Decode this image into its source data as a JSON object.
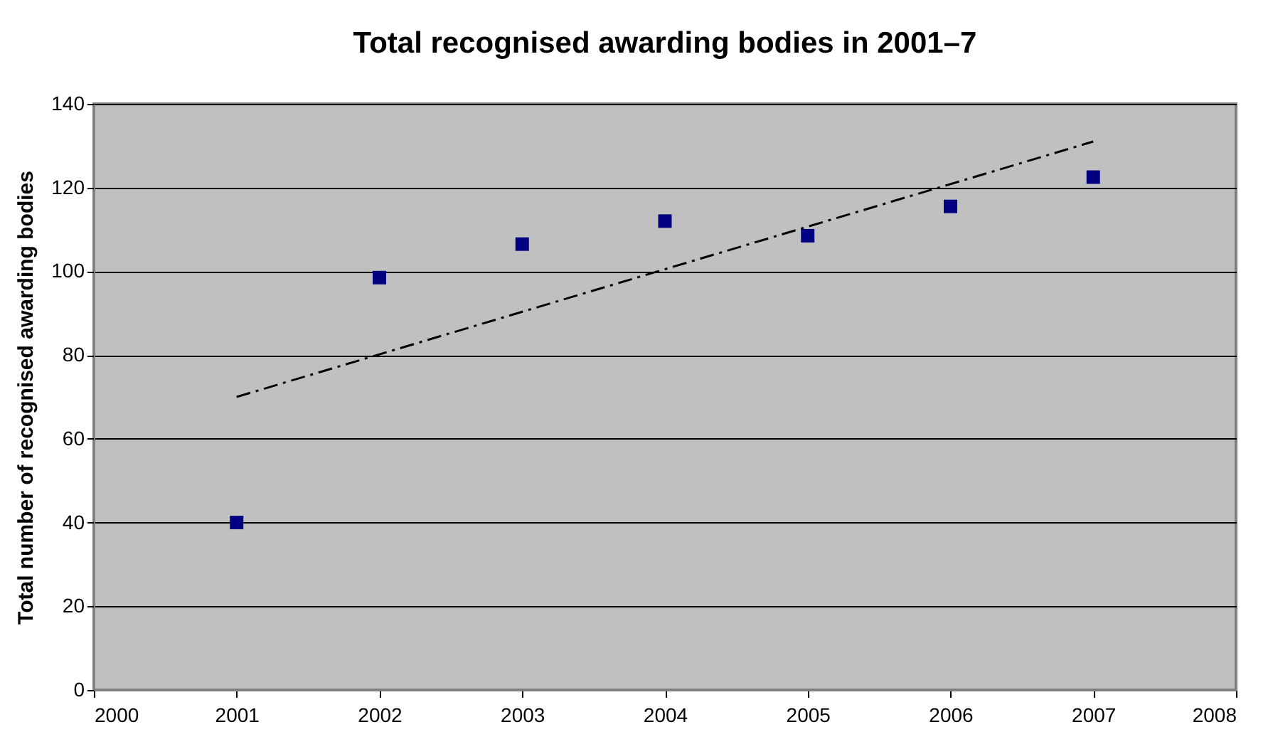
{
  "chart_data": {
    "type": "scatter",
    "title": "Total recognised awarding bodies in 2001–7",
    "ylabel": "Total number of recognised awarding bodies",
    "series": [
      {
        "color": "#000080",
        "marker": "square",
        "x": [
          2001,
          2002,
          2003,
          2004,
          2005,
          2006,
          2007
        ],
        "values": [
          40,
          98.5,
          106.5,
          112,
          108.5,
          115.5,
          122.5
        ]
      },
      {
        "type": "line",
        "color": "#000000",
        "line_style": "dashed",
        "marker": "none",
        "x": [
          2001,
          2007
        ],
        "values": [
          70,
          131
        ]
      }
    ],
    "xlim": [
      2000,
      2008
    ],
    "xticks": [
      2000,
      2001,
      2002,
      2003,
      2004,
      2005,
      2006,
      2007,
      2008
    ],
    "ylim": [
      0,
      140
    ],
    "yticks": [
      0,
      20,
      40,
      60,
      80,
      100,
      120,
      140
    ],
    "grid": "y"
  }
}
